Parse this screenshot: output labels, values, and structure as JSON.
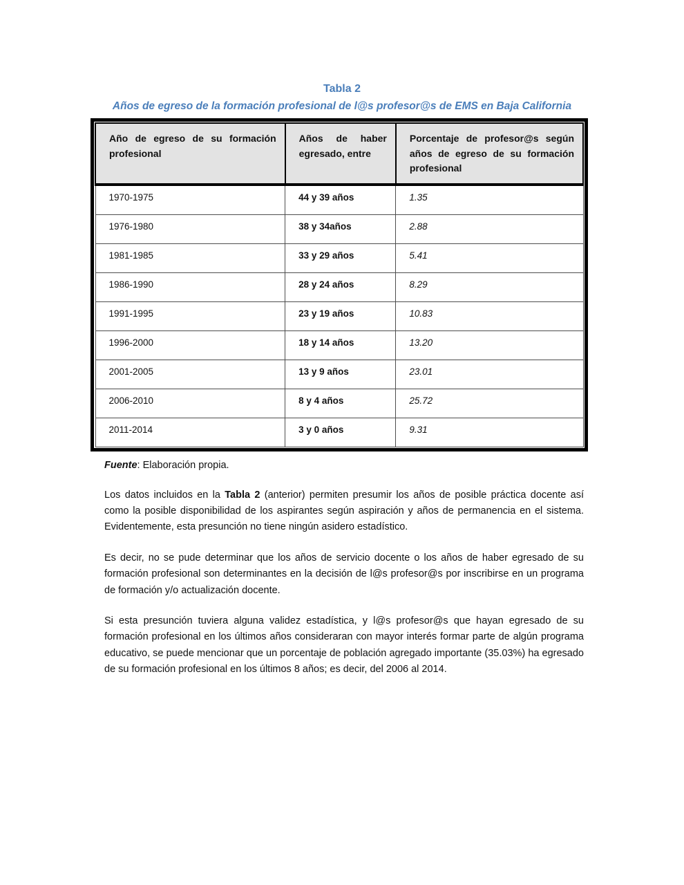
{
  "colors": {
    "accent_blue": "#4a7eba",
    "table_header_bg": "#e3e3e3",
    "border_black": "#000000"
  },
  "title": "Tabla 2",
  "subtitle": "Años de egreso de la formación profesional de l@s profesor@s de EMS en Baja California",
  "table": {
    "headers": [
      "Año de egreso de su formación profesional",
      "Años de haber egresado, entre",
      "Porcentaje de profesor@s según años de egreso de su formación profesional"
    ],
    "rows": [
      [
        "1970-1975",
        "44 y 39 años",
        "1.35"
      ],
      [
        "1976-1980",
        "38 y 34años",
        "2.88"
      ],
      [
        "1981-1985",
        "33 y 29 años",
        "5.41"
      ],
      [
        "1986-1990",
        "28 y 24 años",
        "8.29"
      ],
      [
        "1991-1995",
        "23 y 19 años",
        "10.83"
      ],
      [
        "1996-2000",
        "18 y 14 años",
        "13.20"
      ],
      [
        "2001-2005",
        "13 y 9 años",
        "23.01"
      ],
      [
        "2006-2010",
        "8 y 4 años",
        "25.72"
      ],
      [
        "2011-2014",
        "3 y 0 años",
        "9.31"
      ]
    ]
  },
  "source": {
    "label": "Fuente",
    "text": ": Elaboración propia."
  },
  "paragraphs": {
    "p1": {
      "before": "Los datos incluidos en la ",
      "bold": "Tabla 2",
      "after": " (anterior) permiten presumir los años de posible práctica docente así como la posible disponibilidad de los aspirantes según aspiración y años de permanencia en el sistema. Evidentemente, esta presunción no tiene ningún asidero estadístico."
    },
    "p2": "Es decir, no se pude determinar que los años de servicio docente o los años de haber egresado de su formación profesional son determinantes en la decisión de l@s profesor@s por inscribirse en un programa de formación y/o actualización docente.",
    "p3": "Si esta presunción tuviera alguna validez estadística, y l@s profesor@s que hayan egresado de su formación profesional en los últimos años consideraran con mayor interés formar parte de algún programa educativo, se puede mencionar que un porcentaje de población agregado importante (35.03%) ha egresado de su formación profesional en los últimos 8 años; es decir, del 2006 al 2014."
  }
}
